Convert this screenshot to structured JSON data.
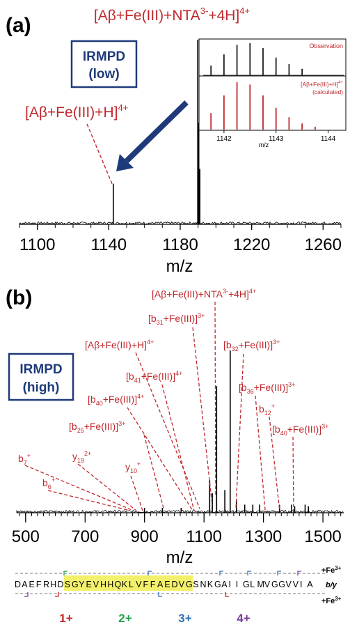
{
  "panels": {
    "a": {
      "letter": "(a)",
      "box_line1": "IRMPD",
      "box_line2": "(low)"
    },
    "b": {
      "letter": "(b)",
      "box_line1": "IRMPD",
      "box_line2": "(high)"
    }
  },
  "colors": {
    "annotation": "#c0282d",
    "box_border": "#1f3a7a",
    "arrow": "#1f3a7a",
    "highlight": "#f3f06c"
  },
  "chart_data": [
    {
      "type": "line",
      "panel": "a",
      "xlabel": "m/z",
      "xlim": [
        1090,
        1270
      ],
      "xticks": [
        1100,
        1140,
        1180,
        1220,
        1260
      ],
      "peaks": [
        [
          1142.5,
          0.22
        ],
        [
          1189.8,
          1.0
        ],
        [
          1190.4,
          0.55
        ],
        [
          1191.0,
          0.3
        ]
      ],
      "annotations": [
        {
          "base": "[Aβ+Fe(III)+NTA",
          "sup1": "3-",
          "mid": "+4H]",
          "sup2": "4+",
          "x": 1190
        },
        {
          "base": "[Aβ+Fe(III)+H]",
          "sup1": "4+",
          "x": 1142.5
        }
      ],
      "inset": {
        "top_label": "Observation",
        "bottom_label_line1": "[Aβ+Fe(III)+H]",
        "bottom_label_sup": "4+",
        "bottom_label_line2": "(calculated)",
        "xlabel": "m/z",
        "xlim": [
          1141.6,
          1144.3
        ],
        "xticks": [
          1142,
          1143,
          1144
        ],
        "observed": [
          [
            1141.75,
            0.3
          ],
          [
            1142.0,
            0.65
          ],
          [
            1142.25,
            0.95
          ],
          [
            1142.5,
            1.0
          ],
          [
            1142.75,
            0.85
          ],
          [
            1143.0,
            0.55
          ],
          [
            1143.25,
            0.35
          ],
          [
            1143.5,
            0.2
          ]
        ],
        "calculated": [
          [
            1141.75,
            0.35
          ],
          [
            1142.0,
            0.72
          ],
          [
            1142.25,
            1.0
          ],
          [
            1142.5,
            0.95
          ],
          [
            1142.75,
            0.72
          ],
          [
            1143.0,
            0.46
          ],
          [
            1143.25,
            0.26
          ],
          [
            1143.5,
            0.13
          ],
          [
            1143.75,
            0.06
          ]
        ]
      }
    },
    {
      "type": "line",
      "panel": "b",
      "xlabel": "m/z",
      "xlim": [
        470,
        1570
      ],
      "xticks": [
        500,
        700,
        900,
        1100,
        1300,
        1500
      ],
      "peaks": [
        [
          1188,
          1.0
        ],
        [
          1142.5,
          0.78
        ],
        [
          1119,
          0.2
        ],
        [
          1128,
          0.12
        ],
        [
          1170,
          0.14
        ],
        [
          1209,
          0.08
        ],
        [
          1237,
          0.05
        ],
        [
          1264,
          0.05
        ],
        [
          1287,
          0.05
        ],
        [
          1354,
          0.05
        ],
        [
          1395,
          0.05
        ],
        [
          1405,
          0.04
        ],
        [
          1440,
          0.05
        ],
        [
          1451,
          0.04
        ],
        [
          900,
          0.03
        ],
        [
          960,
          0.03
        ],
        [
          1023,
          0.03
        ]
      ],
      "annotations": [
        {
          "base": "[Aβ+Fe(III)+NTA",
          "sup1": "3-",
          "mid": "+4H]",
          "sup2": "4+",
          "x": 1188
        },
        {
          "base": "[b",
          "sub": "31",
          "mid": "+Fe(III)]",
          "sup2": "3+",
          "x": 1175
        },
        {
          "base": "[Aβ+Fe(III)+H]",
          "sup1": "4+",
          "x": 1142.5
        },
        {
          "base": "[b",
          "sub": "32",
          "mid": "+Fe(III)]",
          "sup2": "3+",
          "x": 1225
        },
        {
          "base": "[b",
          "sub": "41",
          "mid": "+Fe(III)]",
          "sup2": "4+",
          "x": 1122
        },
        {
          "base": "[b",
          "sub": "36",
          "mid": "+Fe(III)]",
          "sup2": "3+",
          "x": 1352
        },
        {
          "base": "[b",
          "sub": "40",
          "mid": "+Fe(III)]",
          "sup2": "4+",
          "x": 1083
        },
        {
          "base": "b",
          "sub": "12",
          "sup2": "+",
          "x": 1405
        },
        {
          "base": "[b",
          "sub": "40",
          "mid": "+Fe(III)]",
          "sup2": "3+",
          "x": 1442
        },
        {
          "base": "[b",
          "sub": "25",
          "mid": "+Fe(III)]",
          "sup2": "3+",
          "x": 990
        },
        {
          "base": "b",
          "sub": "7",
          "sup2": "+",
          "x": 883
        },
        {
          "base": "y",
          "sub": "19",
          "sup2": "2+",
          "x": 907
        },
        {
          "base": "y",
          "sub": "10",
          "sup2": "+",
          "x": 922
        },
        {
          "base": "b",
          "sub": "6",
          "sup2": "+",
          "x": 873
        }
      ]
    }
  ],
  "sequence": {
    "residues": [
      "D",
      "A",
      "E",
      "F",
      "R",
      "H",
      "D",
      "S",
      "G",
      "Y",
      "E",
      "V",
      "H",
      "H",
      "Q",
      "K",
      "L",
      "V",
      "F",
      "F",
      "A",
      "E",
      "D",
      "V",
      "G",
      "S",
      "N",
      "K",
      "G",
      "A",
      "I",
      "I",
      "G",
      "L",
      "M",
      "V",
      "G",
      "G",
      "V",
      "V",
      "I",
      "A"
    ],
    "highlight_start": 7,
    "highlight_end": 24,
    "right_labels": {
      "top": "+Fe",
      "top_sup": "3+",
      "middle": "b/y",
      "bottom": "+Fe",
      "bottom_sup": "3+"
    },
    "charges": [
      {
        "label": "1+",
        "color": "#c0282d"
      },
      {
        "label": "2+",
        "color": "#22a04a"
      },
      {
        "label": "3+",
        "color": "#2f6fb5"
      },
      {
        "label": "4+",
        "color": "#7a3aa0"
      }
    ]
  }
}
